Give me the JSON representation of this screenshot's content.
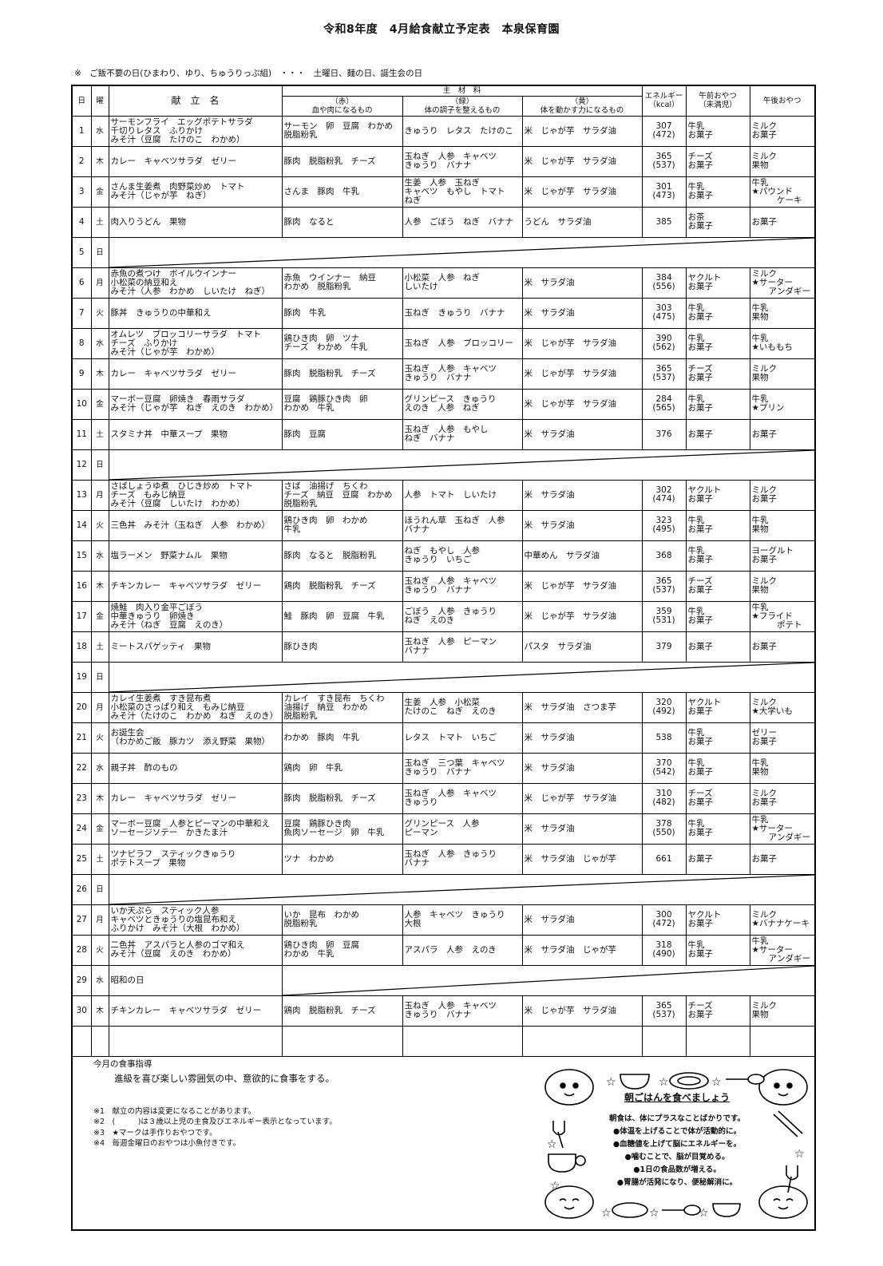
{
  "title": "令和8年度　4月給食献立予定表　本泉保育園",
  "note": "※　ご飯不要の日(ひまわり、ゆり、ちゅうりっぷ組)　・・・　土曜日、麺の日、誕生会の日",
  "headers": {
    "day": "日",
    "dow": "曜",
    "menu": "献　立　名",
    "ingredients": "主　材　料",
    "red_title": "（赤）",
    "red_sub": "血や肉になるもの",
    "green_title": "（緑）",
    "green_sub": "体の調子を整えるもの",
    "yellow_title": "（黄）",
    "yellow_sub": "体を動かす力になるもの",
    "energy": "エネルギー",
    "energy_unit": "（kcal）",
    "am_snack": "午前おやつ",
    "am_snack_sub": "（未満児）",
    "pm_snack": "午後おやつ"
  },
  "rows": [
    {
      "day": "1",
      "dow": "水",
      "menu": [
        "サーモンフライ　エッグポテトサラダ",
        "千切りレタス　ふりかけ",
        "みそ汁（豆腐　たけのこ　わかめ）"
      ],
      "red": [
        "サーモン　卵　豆腐　わかめ",
        "脱脂粉乳"
      ],
      "green": [
        "きゅうり　レタス　たけのこ"
      ],
      "yellow": [
        "米　じゃが芋　サラダ油"
      ],
      "kcal": "307",
      "kcal3": "(472)",
      "am": [
        "牛乳",
        "お菓子"
      ],
      "pm": [
        "ミルク",
        "お菓子"
      ]
    },
    {
      "day": "2",
      "dow": "木",
      "menu": [
        "カレー　キャベツサラダ　ゼリー"
      ],
      "red": [
        "豚肉　脱脂粉乳　チーズ"
      ],
      "green": [
        "玉ねぎ　人参　キャベツ",
        "きゅうり　バナナ"
      ],
      "yellow": [
        "米　じゃが芋　サラダ油"
      ],
      "kcal": "365",
      "kcal3": "(537)",
      "am": [
        "チーズ",
        "お菓子"
      ],
      "pm": [
        "ミルク",
        "果物"
      ]
    },
    {
      "day": "3",
      "dow": "金",
      "menu": [
        "さんま生姜煮　肉野菜炒め　トマト",
        "みそ汁（じゃが芋　ねぎ）"
      ],
      "red": [
        "さんま　豚肉　牛乳"
      ],
      "green": [
        "生姜　人参　玉ねぎ",
        "キャベツ　もやし　トマト",
        "ねぎ"
      ],
      "yellow": [
        "米　じゃが芋　サラダ油"
      ],
      "kcal": "301",
      "kcal3": "(473)",
      "am": [
        "牛乳",
        "お菓子"
      ],
      "pm": [
        "牛乳",
        "★パウンド",
        "　　　ケーキ"
      ]
    },
    {
      "day": "4",
      "dow": "土",
      "menu": [
        "肉入りうどん　果物"
      ],
      "red": [
        "豚肉　なると"
      ],
      "green": [
        "人参　ごぼう　ねぎ　バナナ"
      ],
      "yellow": [
        "うどん　サラダ油"
      ],
      "kcal": "385",
      "kcal3": "",
      "am": [
        "お茶",
        "お菓子"
      ],
      "pm": [
        "お菓子"
      ]
    },
    {
      "day": "5",
      "dow": "日",
      "holiday": true
    },
    {
      "day": "6",
      "dow": "月",
      "menu": [
        "赤魚の煮つけ　ボイルウインナー",
        "小松菜の納豆和え",
        "みそ汁（人参　わかめ　しいたけ　ねぎ）"
      ],
      "red": [
        "赤魚　ウインナー　納豆",
        "わかめ　脱脂粉乳"
      ],
      "green": [
        "小松菜　人参　ねぎ",
        "しいたけ"
      ],
      "yellow": [
        "米　サラダ油"
      ],
      "kcal": "384",
      "kcal3": "(556)",
      "am": [
        "ヤクルト",
        "お菓子"
      ],
      "pm": [
        "ミルク",
        "★サーター",
        "　　アンダギー"
      ]
    },
    {
      "day": "7",
      "dow": "火",
      "menu": [
        "豚丼　きゅうりの中華和え"
      ],
      "red": [
        "豚肉　牛乳"
      ],
      "green": [
        "玉ねぎ　きゅうり　バナナ"
      ],
      "yellow": [
        "米　サラダ油"
      ],
      "kcal": "303",
      "kcal3": "(475)",
      "am": [
        "牛乳",
        "お菓子"
      ],
      "pm": [
        "牛乳",
        "果物"
      ]
    },
    {
      "day": "8",
      "dow": "水",
      "menu": [
        "オムレツ　ブロッコリーサラダ　トマト",
        "チーズ　ふりかけ",
        "みそ汁（じゃが芋　わかめ）"
      ],
      "red": [
        "鶏ひき肉　卵　ツナ",
        "チーズ　わかめ　牛乳"
      ],
      "green": [
        "玉ねぎ　人参　ブロッコリー"
      ],
      "yellow": [
        "米　じゃが芋　サラダ油"
      ],
      "kcal": "390",
      "kcal3": "(562)",
      "am": [
        "牛乳",
        "お菓子"
      ],
      "pm": [
        "牛乳",
        "★いももち"
      ]
    },
    {
      "day": "9",
      "dow": "木",
      "menu": [
        "カレー　キャベツサラダ　ゼリー"
      ],
      "red": [
        "豚肉　脱脂粉乳　チーズ"
      ],
      "green": [
        "玉ねぎ　人参　キャベツ",
        "きゅうり　バナナ"
      ],
      "yellow": [
        "米　じゃが芋　サラダ油"
      ],
      "kcal": "365",
      "kcal3": "(537)",
      "am": [
        "チーズ",
        "お菓子"
      ],
      "pm": [
        "ミルク",
        "果物"
      ]
    },
    {
      "day": "10",
      "dow": "金",
      "menu": [
        "マーボー豆腐　卵焼き　春雨サラダ",
        "みそ汁（じゃが芋　ねぎ　えのき　わかめ）"
      ],
      "red": [
        "豆腐　鶏豚ひき肉　卵",
        "わかめ　牛乳"
      ],
      "green": [
        "グリンピース　きゅうり",
        "えのき　人参　ねぎ"
      ],
      "yellow": [
        "米　じゃが芋　サラダ油"
      ],
      "kcal": "284",
      "kcal3": "(565)",
      "am": [
        "牛乳",
        "お菓子"
      ],
      "pm": [
        "牛乳",
        "★プリン"
      ]
    },
    {
      "day": "11",
      "dow": "土",
      "menu": [
        "スタミナ丼　中華スープ　果物"
      ],
      "red": [
        "豚肉　豆腐"
      ],
      "green": [
        "玉ねぎ　人参　もやし",
        "ねぎ　バナナ"
      ],
      "yellow": [
        "米　サラダ油"
      ],
      "kcal": "376",
      "kcal3": "",
      "am": [
        "お菓子"
      ],
      "pm": [
        "お菓子"
      ]
    },
    {
      "day": "12",
      "dow": "日",
      "holiday": true
    },
    {
      "day": "13",
      "dow": "月",
      "menu": [
        "さばしょうゆ煮　ひじき炒め　トマト",
        "チーズ　もみじ納豆",
        "みそ汁（豆腐　しいたけ　わかめ）"
      ],
      "red": [
        "さば　油揚げ　ちくわ",
        "チーズ　納豆　豆腐　わかめ",
        "脱脂粉乳"
      ],
      "green": [
        "人参　トマト　しいたけ"
      ],
      "yellow": [
        "米　サラダ油"
      ],
      "kcal": "302",
      "kcal3": "(474)",
      "am": [
        "ヤクルト",
        "お菓子"
      ],
      "pm": [
        "ミルク",
        "お菓子"
      ]
    },
    {
      "day": "14",
      "dow": "火",
      "menu": [
        "三色丼　みそ汁（玉ねぎ　人参　わかめ）"
      ],
      "red": [
        "鶏ひき肉　卵　わかめ",
        "牛乳"
      ],
      "green": [
        "ほうれん草　玉ねぎ　人参",
        "バナナ"
      ],
      "yellow": [
        "米　サラダ油"
      ],
      "kcal": "323",
      "kcal3": "(495)",
      "am": [
        "牛乳",
        "お菓子"
      ],
      "pm": [
        "牛乳",
        "果物"
      ]
    },
    {
      "day": "15",
      "dow": "水",
      "menu": [
        "塩ラーメン　野菜ナムル　果物"
      ],
      "red": [
        "豚肉　なると　脱脂粉乳"
      ],
      "green": [
        "ねぎ　もやし　人参",
        "きゅうり　いちご"
      ],
      "yellow": [
        "中華めん　サラダ油"
      ],
      "kcal": "368",
      "kcal3": "",
      "am": [
        "牛乳",
        "お菓子"
      ],
      "pm": [
        "ヨーグルト",
        "お菓子"
      ]
    },
    {
      "day": "16",
      "dow": "木",
      "menu": [
        "チキンカレー　キャベツサラダ　ゼリー"
      ],
      "red": [
        "鶏肉　脱脂粉乳　チーズ"
      ],
      "green": [
        "玉ねぎ　人参　キャベツ",
        "きゅうり　バナナ"
      ],
      "yellow": [
        "米　じゃが芋　サラダ油"
      ],
      "kcal": "365",
      "kcal3": "(537)",
      "am": [
        "チーズ",
        "お菓子"
      ],
      "pm": [
        "ミルク",
        "果物"
      ]
    },
    {
      "day": "17",
      "dow": "金",
      "menu": [
        "焼鮭　肉入り金平ごぼう",
        "中華きゅうり　卵焼き",
        "みそ汁（ねぎ　豆腐　えのき）"
      ],
      "red": [
        "鮭　豚肉　卵　豆腐　牛乳"
      ],
      "green": [
        "ごぼう　人参　きゅうり",
        "ねぎ　えのき"
      ],
      "yellow": [
        "米　じゃが芋　サラダ油"
      ],
      "kcal": "359",
      "kcal3": "(531)",
      "am": [
        "牛乳",
        "お菓子"
      ],
      "pm": [
        "牛乳",
        "★フライド",
        "　　　ポテト"
      ]
    },
    {
      "day": "18",
      "dow": "土",
      "menu": [
        "ミートスパゲッティ　果物"
      ],
      "red": [
        "豚ひき肉"
      ],
      "green": [
        "玉ねぎ　人参　ピーマン",
        "バナナ"
      ],
      "yellow": [
        "パスタ　サラダ油"
      ],
      "kcal": "379",
      "kcal3": "",
      "am": [
        "お菓子"
      ],
      "pm": [
        "お菓子"
      ]
    },
    {
      "day": "19",
      "dow": "日",
      "holiday": true
    },
    {
      "day": "20",
      "dow": "月",
      "menu": [
        "カレイ生姜煮　すき昆布煮",
        "小松菜のさっぱり和え　もみじ納豆",
        "みそ汁（たけのこ　わかめ　ねぎ　えのき）"
      ],
      "red": [
        "カレイ　すき昆布　ちくわ",
        "油揚げ　納豆　わかめ",
        "脱脂粉乳"
      ],
      "green": [
        "生姜　人参　小松菜",
        "たけのこ　ねぎ　えのき"
      ],
      "yellow": [
        "米　サラダ油　さつま芋"
      ],
      "kcal": "320",
      "kcal3": "(492)",
      "am": [
        "ヤクルト",
        "お菓子"
      ],
      "pm": [
        "ミルク",
        "★大学いも"
      ]
    },
    {
      "day": "21",
      "dow": "火",
      "menu": [
        "お誕生会",
        "（わかめご飯　豚カツ　添え野菜　果物）"
      ],
      "red": [
        "わかめ　豚肉　牛乳"
      ],
      "green": [
        "レタス　トマト　いちご"
      ],
      "yellow": [
        "米　サラダ油"
      ],
      "kcal": "538",
      "kcal3": "",
      "am": [
        "牛乳",
        "お菓子"
      ],
      "pm": [
        "ゼリー",
        "お菓子"
      ]
    },
    {
      "day": "22",
      "dow": "水",
      "menu": [
        "親子丼　酢のもの"
      ],
      "red": [
        "鶏肉　卵　牛乳"
      ],
      "green": [
        "玉ねぎ　三つ葉　キャベツ",
        "きゅうり　バナナ"
      ],
      "yellow": [
        "米　サラダ油"
      ],
      "kcal": "370",
      "kcal3": "(542)",
      "am": [
        "牛乳",
        "お菓子"
      ],
      "pm": [
        "牛乳",
        "果物"
      ]
    },
    {
      "day": "23",
      "dow": "木",
      "menu": [
        "カレー　キャベツサラダ　ゼリー"
      ],
      "red": [
        "豚肉　脱脂粉乳　チーズ"
      ],
      "green": [
        "玉ねぎ　人参　キャベツ",
        "きゅうり"
      ],
      "yellow": [
        "米　じゃが芋　サラダ油"
      ],
      "kcal": "310",
      "kcal3": "(482)",
      "am": [
        "チーズ",
        "お菓子"
      ],
      "pm": [
        "ミルク",
        "お菓子"
      ]
    },
    {
      "day": "24",
      "dow": "金",
      "menu": [
        "マーボー豆腐　人参とピーマンの中華和え",
        "ソーセージソテー　かきたま汁"
      ],
      "red": [
        "豆腐　鶏豚ひき肉",
        "魚肉ソーセージ　卵　牛乳"
      ],
      "green": [
        "グリンピース　人参",
        "ピーマン"
      ],
      "yellow": [
        "米　サラダ油"
      ],
      "kcal": "378",
      "kcal3": "(550)",
      "am": [
        "牛乳",
        "お菓子"
      ],
      "pm": [
        "牛乳",
        "★サーター",
        "　　アンダギー"
      ]
    },
    {
      "day": "25",
      "dow": "土",
      "menu": [
        "ツナピラフ　スティックきゅうり",
        "ポテトスープ　果物"
      ],
      "red": [
        "ツナ　わかめ"
      ],
      "green": [
        "玉ねぎ　人参　きゅうり",
        "バナナ"
      ],
      "yellow": [
        "米　サラダ油　じゃが芋"
      ],
      "kcal": "661",
      "kcal3": "",
      "am": [
        "お菓子"
      ],
      "pm": [
        "お菓子"
      ]
    },
    {
      "day": "26",
      "dow": "日",
      "holiday": true
    },
    {
      "day": "27",
      "dow": "月",
      "menu": [
        "いか天ぷら　スティック人参",
        "キャベツときゅうりの塩昆布和え",
        "ふりかけ　みそ汁（大根　わかめ）"
      ],
      "red": [
        "いか　昆布　わかめ",
        "脱脂粉乳"
      ],
      "green": [
        "人参　キャベツ　きゅうり",
        "大根"
      ],
      "yellow": [
        "米　サラダ油"
      ],
      "kcal": "300",
      "kcal3": "(472)",
      "am": [
        "ヤクルト",
        "お菓子"
      ],
      "pm": [
        "ミルク",
        "★バナナケーキ"
      ]
    },
    {
      "day": "28",
      "dow": "火",
      "menu": [
        "二色丼　アスパラと人参のゴマ和え",
        "みそ汁（豆腐　えのき　わかめ）"
      ],
      "red": [
        "鶏ひき肉　卵　豆腐",
        "わかめ　牛乳"
      ],
      "green": [
        "アスパラ　人参　えのき"
      ],
      "yellow": [
        "米　サラダ油　じゃが芋"
      ],
      "kcal": "318",
      "kcal3": "(490)",
      "am": [
        "牛乳",
        "お菓子"
      ],
      "pm": [
        "牛乳",
        "★サーター",
        "　　アンダギー"
      ]
    },
    {
      "day": "29",
      "dow": "水",
      "holiday": true,
      "holiday_label": "昭和の日"
    },
    {
      "day": "30",
      "dow": "木",
      "menu": [
        "チキンカレー　キャベツサラダ　ゼリー"
      ],
      "red": [
        "鶏肉　脱脂粉乳　チーズ"
      ],
      "green": [
        "玉ねぎ　人参　キャベツ",
        "きゅうり　バナナ"
      ],
      "yellow": [
        "米　じゃが芋　サラダ油"
      ],
      "kcal": "365",
      "kcal3": "(537)",
      "am": [
        "チーズ",
        "お菓子"
      ],
      "pm": [
        "ミルク",
        "果物"
      ]
    },
    {
      "day": "",
      "dow": "",
      "empty": true
    }
  ],
  "footer": {
    "guidance_heading": "今月の食事指導",
    "guidance_text": "進級を喜び楽しい雰囲気の中、意欲的に食事をする。",
    "notes": [
      "※1　献立の内容は変更になることがあります。",
      "※2　(　　　)は３歳以上児の主食及びエネルギー表示となっています。",
      "※3　★マークは手作りおやつです。",
      "※4　毎週金曜日のおやつは小魚付きです。"
    ],
    "illustration": {
      "title": "朝ごはんを食べましょう",
      "lines": [
        "朝食は、体にプラスなことばかりです。",
        "●体温を上げることで体が活動的に。",
        "●血糖値を上げて脳にエネルギーを。",
        "●噛むことで、脳が目覚める。",
        "●1日の食品数が増える。",
        "●胃腸が活発になり、便秘解消に。"
      ]
    }
  }
}
